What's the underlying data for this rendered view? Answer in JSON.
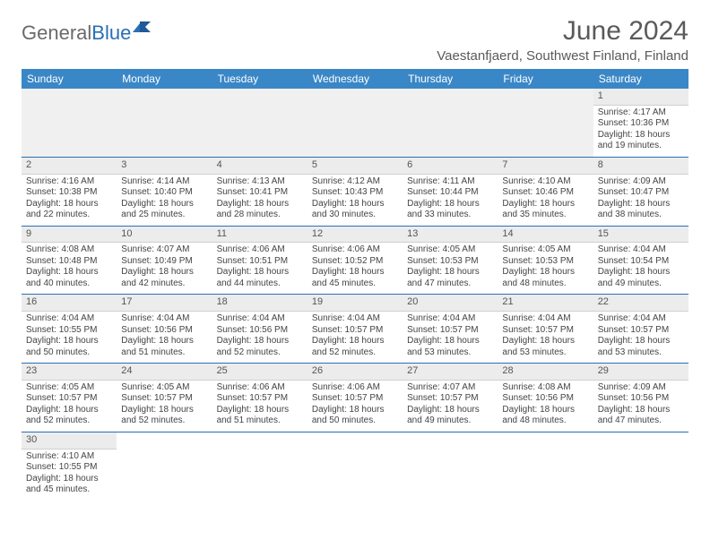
{
  "logo": {
    "general": "General",
    "blue": "Blue"
  },
  "title": "June 2024",
  "location": "Vaestanfjaerd, Southwest Finland, Finland",
  "colors": {
    "header_bg": "#3a87c7",
    "header_text": "#ffffff",
    "grid_line": "#2a6fb5",
    "daynum_bg": "#ececec",
    "blank_bg": "#f0f0f0",
    "body_text": "#444444",
    "title_text": "#5a5a5a"
  },
  "headers": [
    "Sunday",
    "Monday",
    "Tuesday",
    "Wednesday",
    "Thursday",
    "Friday",
    "Saturday"
  ],
  "weeks": [
    [
      null,
      null,
      null,
      null,
      null,
      null,
      {
        "n": "1",
        "sr": "4:17 AM",
        "ss": "10:36 PM",
        "dl": "18 hours and 19 minutes."
      }
    ],
    [
      {
        "n": "2",
        "sr": "4:16 AM",
        "ss": "10:38 PM",
        "dl": "18 hours and 22 minutes."
      },
      {
        "n": "3",
        "sr": "4:14 AM",
        "ss": "10:40 PM",
        "dl": "18 hours and 25 minutes."
      },
      {
        "n": "4",
        "sr": "4:13 AM",
        "ss": "10:41 PM",
        "dl": "18 hours and 28 minutes."
      },
      {
        "n": "5",
        "sr": "4:12 AM",
        "ss": "10:43 PM",
        "dl": "18 hours and 30 minutes."
      },
      {
        "n": "6",
        "sr": "4:11 AM",
        "ss": "10:44 PM",
        "dl": "18 hours and 33 minutes."
      },
      {
        "n": "7",
        "sr": "4:10 AM",
        "ss": "10:46 PM",
        "dl": "18 hours and 35 minutes."
      },
      {
        "n": "8",
        "sr": "4:09 AM",
        "ss": "10:47 PM",
        "dl": "18 hours and 38 minutes."
      }
    ],
    [
      {
        "n": "9",
        "sr": "4:08 AM",
        "ss": "10:48 PM",
        "dl": "18 hours and 40 minutes."
      },
      {
        "n": "10",
        "sr": "4:07 AM",
        "ss": "10:49 PM",
        "dl": "18 hours and 42 minutes."
      },
      {
        "n": "11",
        "sr": "4:06 AM",
        "ss": "10:51 PM",
        "dl": "18 hours and 44 minutes."
      },
      {
        "n": "12",
        "sr": "4:06 AM",
        "ss": "10:52 PM",
        "dl": "18 hours and 45 minutes."
      },
      {
        "n": "13",
        "sr": "4:05 AM",
        "ss": "10:53 PM",
        "dl": "18 hours and 47 minutes."
      },
      {
        "n": "14",
        "sr": "4:05 AM",
        "ss": "10:53 PM",
        "dl": "18 hours and 48 minutes."
      },
      {
        "n": "15",
        "sr": "4:04 AM",
        "ss": "10:54 PM",
        "dl": "18 hours and 49 minutes."
      }
    ],
    [
      {
        "n": "16",
        "sr": "4:04 AM",
        "ss": "10:55 PM",
        "dl": "18 hours and 50 minutes."
      },
      {
        "n": "17",
        "sr": "4:04 AM",
        "ss": "10:56 PM",
        "dl": "18 hours and 51 minutes."
      },
      {
        "n": "18",
        "sr": "4:04 AM",
        "ss": "10:56 PM",
        "dl": "18 hours and 52 minutes."
      },
      {
        "n": "19",
        "sr": "4:04 AM",
        "ss": "10:57 PM",
        "dl": "18 hours and 52 minutes."
      },
      {
        "n": "20",
        "sr": "4:04 AM",
        "ss": "10:57 PM",
        "dl": "18 hours and 53 minutes."
      },
      {
        "n": "21",
        "sr": "4:04 AM",
        "ss": "10:57 PM",
        "dl": "18 hours and 53 minutes."
      },
      {
        "n": "22",
        "sr": "4:04 AM",
        "ss": "10:57 PM",
        "dl": "18 hours and 53 minutes."
      }
    ],
    [
      {
        "n": "23",
        "sr": "4:05 AM",
        "ss": "10:57 PM",
        "dl": "18 hours and 52 minutes."
      },
      {
        "n": "24",
        "sr": "4:05 AM",
        "ss": "10:57 PM",
        "dl": "18 hours and 52 minutes."
      },
      {
        "n": "25",
        "sr": "4:06 AM",
        "ss": "10:57 PM",
        "dl": "18 hours and 51 minutes."
      },
      {
        "n": "26",
        "sr": "4:06 AM",
        "ss": "10:57 PM",
        "dl": "18 hours and 50 minutes."
      },
      {
        "n": "27",
        "sr": "4:07 AM",
        "ss": "10:57 PM",
        "dl": "18 hours and 49 minutes."
      },
      {
        "n": "28",
        "sr": "4:08 AM",
        "ss": "10:56 PM",
        "dl": "18 hours and 48 minutes."
      },
      {
        "n": "29",
        "sr": "4:09 AM",
        "ss": "10:56 PM",
        "dl": "18 hours and 47 minutes."
      }
    ],
    [
      {
        "n": "30",
        "sr": "4:10 AM",
        "ss": "10:55 PM",
        "dl": "18 hours and 45 minutes."
      },
      null,
      null,
      null,
      null,
      null,
      null
    ]
  ],
  "labels": {
    "sunrise": "Sunrise:",
    "sunset": "Sunset:",
    "daylight": "Daylight:"
  }
}
